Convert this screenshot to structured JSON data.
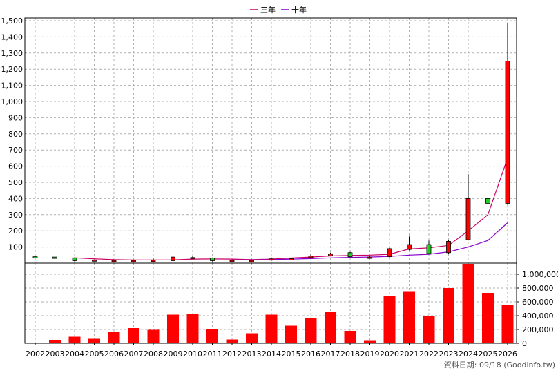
{
  "legend": {
    "ma3_label": "三年",
    "ma10_label": "十年",
    "ma3_color": "#cc0066",
    "ma10_color": "#8800cc"
  },
  "source_note": "資料日期: 09/18  (Goodinfo.tw)",
  "colors": {
    "up": "#ff0000",
    "down": "#22cc22",
    "volume": "#ff0000",
    "grid": "#b0b0b0"
  },
  "chart_data": [
    {
      "type": "candlestick",
      "title": "",
      "categories": [
        "2002",
        "2003",
        "2004",
        "2005",
        "2006",
        "2007",
        "2008",
        "2009",
        "2010",
        "2011",
        "2012",
        "2013",
        "2014",
        "2015",
        "2016",
        "2017",
        "2018",
        "2019",
        "2020",
        "2021",
        "2022",
        "2023",
        "2024",
        "2025",
        "2026"
      ],
      "ylim": [
        0,
        1500
      ],
      "yticks": [
        100,
        200,
        300,
        400,
        500,
        600,
        700,
        800,
        900,
        1000,
        1100,
        1200,
        1300,
        1400,
        1500
      ],
      "ytick_labels": [
        "100",
        "200",
        "300",
        "400",
        "500",
        "600",
        "700",
        "800",
        "900",
        "1,000",
        "1,100",
        "1,200",
        "1,300",
        "1,400",
        "1,500"
      ],
      "grid": true,
      "candles": [
        {
          "open": 40,
          "close": 35,
          "high": 42,
          "low": 32
        },
        {
          "open": 38,
          "close": 36,
          "high": 40,
          "low": 28
        },
        {
          "open": 33,
          "close": 15,
          "high": 36,
          "low": 10
        },
        {
          "open": 18,
          "close": 20,
          "high": 22,
          "low": 14
        },
        {
          "open": 15,
          "close": 17,
          "high": 20,
          "low": 12
        },
        {
          "open": 15,
          "close": 17,
          "high": 22,
          "low": 10
        },
        {
          "open": 15,
          "close": 18,
          "high": 30,
          "low": 5
        },
        {
          "open": 15,
          "close": 38,
          "high": 40,
          "low": 10
        },
        {
          "open": 30,
          "close": 35,
          "high": 45,
          "low": 26
        },
        {
          "open": 32,
          "close": 15,
          "high": 35,
          "low": 10
        },
        {
          "open": 15,
          "close": 17,
          "high": 20,
          "low": 10
        },
        {
          "open": 15,
          "close": 17,
          "high": 22,
          "low": 10
        },
        {
          "open": 20,
          "close": 27,
          "high": 35,
          "low": 14
        },
        {
          "open": 25,
          "close": 28,
          "high": 45,
          "low": 20
        },
        {
          "open": 35,
          "close": 45,
          "high": 55,
          "low": 30
        },
        {
          "open": 45,
          "close": 58,
          "high": 65,
          "low": 42
        },
        {
          "open": 65,
          "close": 40,
          "high": 70,
          "low": 38
        },
        {
          "open": 35,
          "close": 38,
          "high": 42,
          "low": 30
        },
        {
          "open": 40,
          "close": 90,
          "high": 95,
          "low": 35
        },
        {
          "open": 85,
          "close": 115,
          "high": 165,
          "low": 80
        },
        {
          "open": 115,
          "close": 60,
          "high": 140,
          "low": 55
        },
        {
          "open": 65,
          "close": 135,
          "high": 145,
          "low": 60
        },
        {
          "open": 145,
          "close": 400,
          "high": 550,
          "low": 140
        },
        {
          "open": 400,
          "close": 370,
          "high": 425,
          "low": 210
        },
        {
          "open": 370,
          "close": 1250,
          "high": 1485,
          "low": 360
        }
      ],
      "series": [
        {
          "name": "三年",
          "values": [
            null,
            null,
            33,
            27,
            22,
            20,
            20,
            20,
            25,
            26,
            25,
            22,
            25,
            32,
            38,
            45,
            48,
            50,
            55,
            88,
            95,
            110,
            200,
            300,
            650
          ]
        },
        {
          "name": "十年",
          "values": [
            null,
            null,
            null,
            null,
            null,
            null,
            null,
            null,
            null,
            null,
            20,
            20,
            22,
            25,
            28,
            33,
            36,
            38,
            42,
            50,
            55,
            70,
            100,
            140,
            250
          ]
        }
      ]
    },
    {
      "type": "bar",
      "title": "",
      "categories": [
        "2002",
        "2003",
        "2004",
        "2005",
        "2006",
        "2007",
        "2008",
        "2009",
        "2010",
        "2011",
        "2012",
        "2013",
        "2014",
        "2015",
        "2016",
        "2017",
        "2018",
        "2019",
        "2020",
        "2021",
        "2022",
        "2023",
        "2024",
        "2025",
        "2026"
      ],
      "values": [
        8000,
        50000,
        95000,
        65000,
        170000,
        220000,
        195000,
        415000,
        420000,
        210000,
        55000,
        145000,
        415000,
        255000,
        370000,
        450000,
        180000,
        45000,
        680000,
        745000,
        395000,
        800000,
        1150000,
        730000,
        555000
      ],
      "ylim": [
        0,
        1200000
      ],
      "yticks": [
        0,
        200000,
        400000,
        600000,
        800000,
        1000000
      ],
      "ytick_labels": [
        "0",
        "200,000",
        "400,000",
        "600,000",
        "800,000",
        "1,000,000"
      ],
      "grid": true
    }
  ]
}
